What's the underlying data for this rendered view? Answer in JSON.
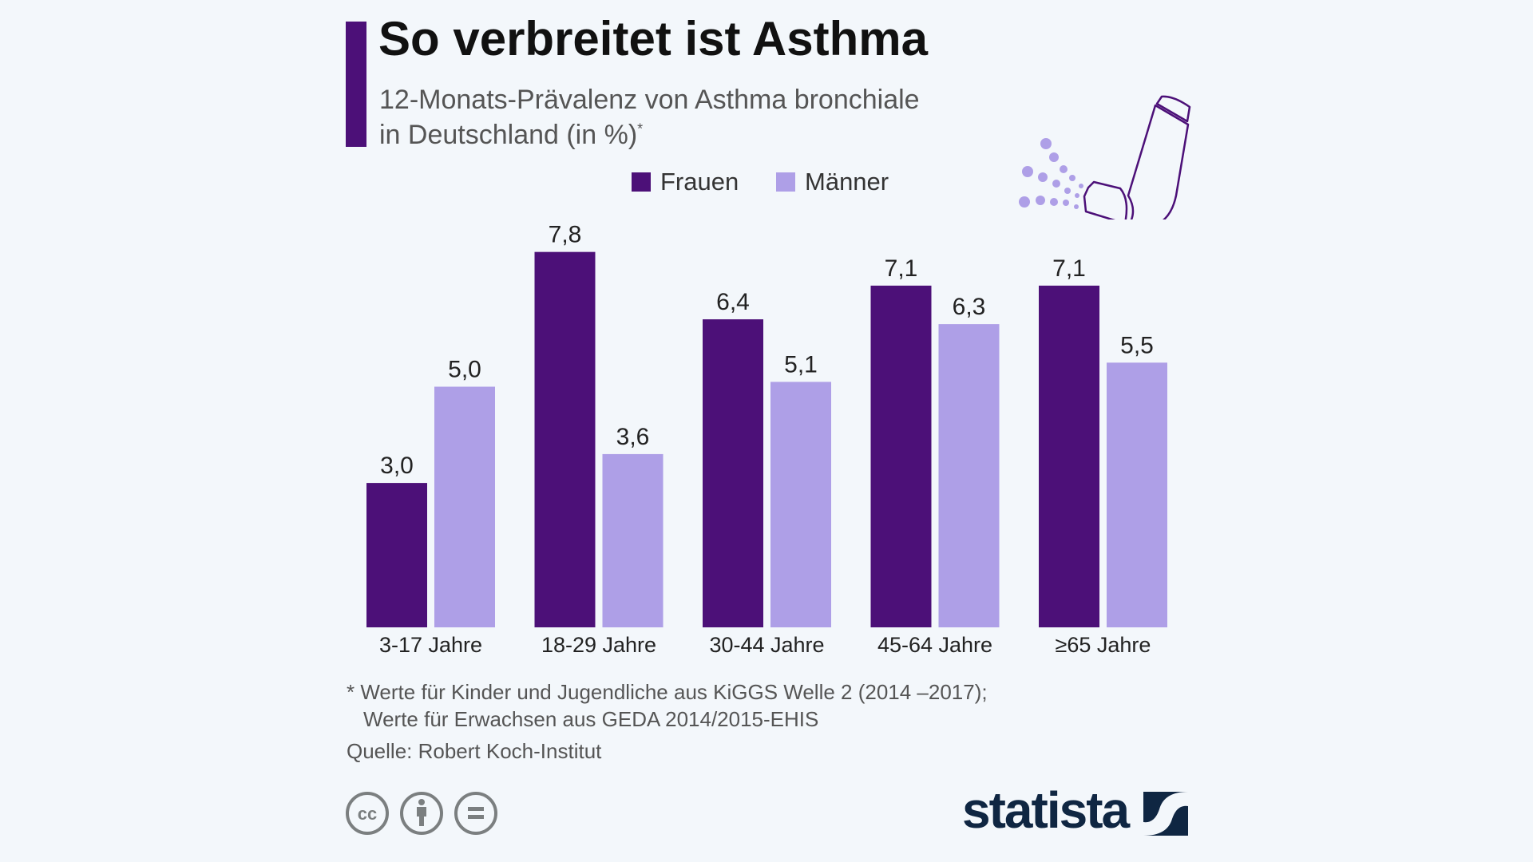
{
  "title": "So verbreitet ist Asthma",
  "subtitle_line1": "12-Monats-Prävalenz von Asthma bronchiale",
  "subtitle_line2": "in Deutschland (in %)",
  "subtitle_mark": "*",
  "footnote_line1": "* Werte für Kinder und Jugendliche aus KiGGS Welle 2 (2014 –2017);",
  "footnote_line2": "Werte für Erwachsen aus GEDA 2014/2015-EHIS",
  "source": "Quelle: Robert Koch-Institut",
  "logo": "statista",
  "colors": {
    "frauen": "#4c1078",
    "maenner": "#ae9fe7"
  },
  "chart_data": {
    "type": "bar",
    "title": "So verbreitet ist Asthma",
    "categories": [
      "3-17 Jahre",
      "18-29 Jahre",
      "30-44 Jahre",
      "45-64 Jahre",
      "≥65 Jahre"
    ],
    "series": [
      {
        "name": "Frauen",
        "values": [
          3.0,
          7.8,
          6.4,
          7.1,
          7.1
        ],
        "labels": [
          "3,0",
          "7,8",
          "6,4",
          "7,1",
          "7,1"
        ]
      },
      {
        "name": "Männer",
        "values": [
          5.0,
          3.6,
          5.1,
          6.3,
          5.5
        ],
        "labels": [
          "5,0",
          "3,6",
          "5,1",
          "6,3",
          "5,5"
        ]
      }
    ],
    "ylim": [
      0,
      7.8
    ],
    "legend": "top-center",
    "grid": false
  }
}
